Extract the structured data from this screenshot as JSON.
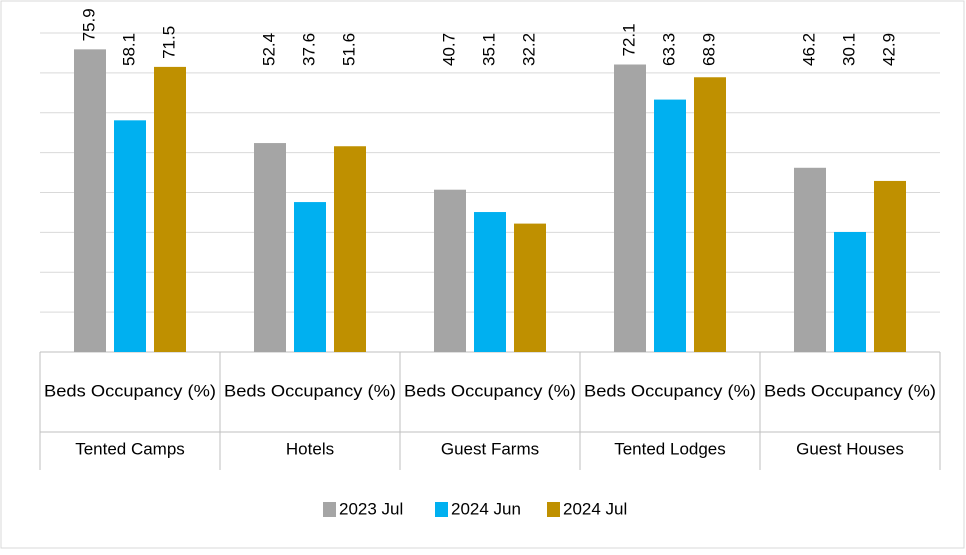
{
  "chart_data": {
    "type": "bar",
    "categories": [
      "Tented Camps",
      "Hotels",
      "Guest Farms",
      "Tented Lodges",
      "Guest Houses"
    ],
    "sub_categories": [
      "Beds Occupancy (%)",
      "Beds Occupancy (%)",
      "Beds Occupancy (%)",
      "Beds Occupancy (%)",
      "Beds Occupancy (%)"
    ],
    "series": [
      {
        "name": "2023 Jul",
        "color": "#a5a5a5",
        "values": [
          75.9,
          52.4,
          40.7,
          72.1,
          46.2
        ]
      },
      {
        "name": "2024 Jun",
        "color": "#00b0f0",
        "values": [
          58.1,
          37.6,
          35.1,
          63.3,
          30.1
        ]
      },
      {
        "name": "2024 Jul",
        "color": "#bf9000",
        "values": [
          71.5,
          51.6,
          32.2,
          68.9,
          42.9
        ]
      }
    ],
    "ylim": [
      0,
      80
    ],
    "yticks": [
      0,
      10,
      20,
      30,
      40,
      50,
      60,
      70,
      80
    ],
    "grid": true,
    "legend": "bottom"
  }
}
